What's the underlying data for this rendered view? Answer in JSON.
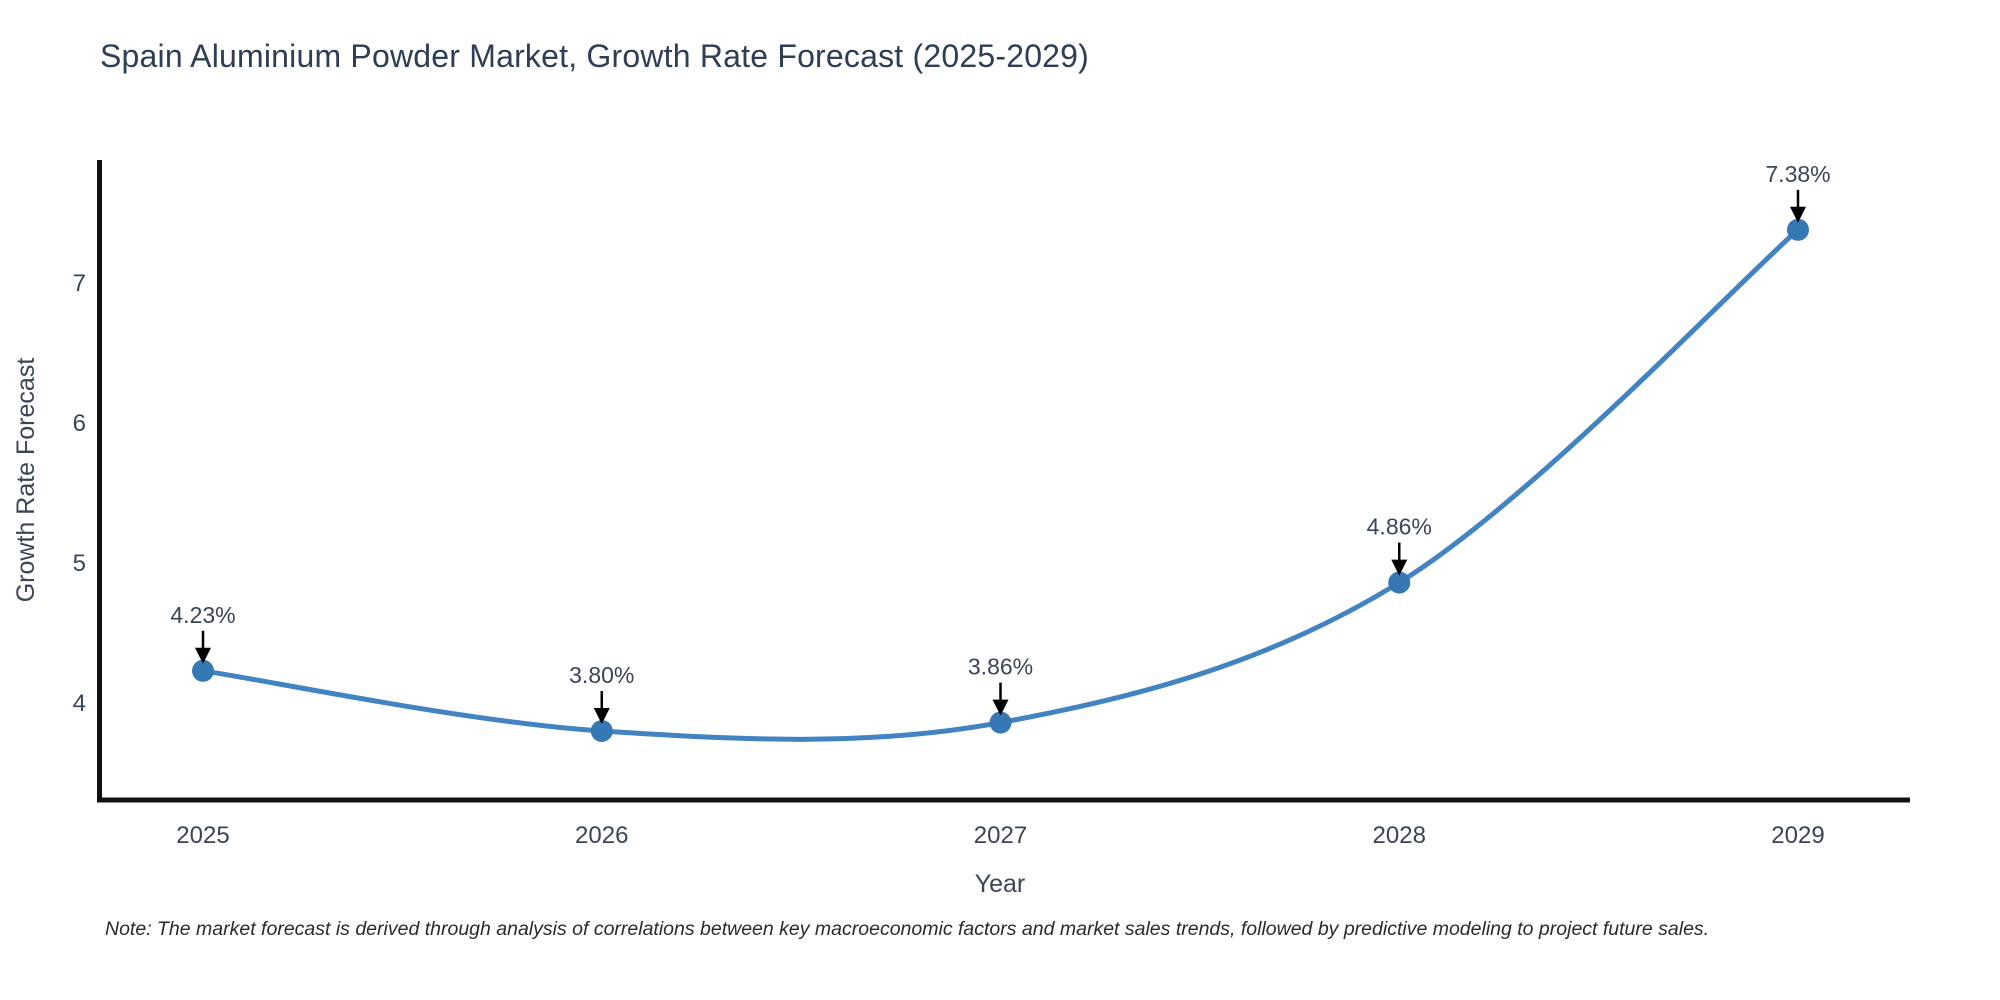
{
  "title": "Spain Aluminium Powder Market, Growth Rate Forecast (2025-2029)",
  "note": "Note: The market forecast is derived through analysis of correlations between key macroeconomic factors and market sales trends, followed by predictive modeling to project future sales.",
  "chart_data": {
    "type": "line",
    "title": "Spain Aluminium Powder Market, Growth Rate Forecast (2025-2029)",
    "xlabel": "Year",
    "ylabel": "Growth Rate Forecast",
    "categories": [
      2025,
      2026,
      2027,
      2028,
      2029
    ],
    "values": [
      4.23,
      3.8,
      3.86,
      4.86,
      7.38
    ],
    "point_labels": [
      "4.23%",
      "3.80%",
      "3.86%",
      "4.86%",
      "7.38%"
    ],
    "yticks": [
      4,
      5,
      6,
      7
    ],
    "ylim": [
      3.31,
      7.88
    ],
    "grid": false,
    "legend": false,
    "curve": "spline",
    "annotations": "value labels with downward arrows above each point",
    "colors": {
      "line": "#4283c2",
      "marker": "#3678b4",
      "axis": "#111111",
      "title_text": "#2d3e56",
      "tick_text": "#3a4556",
      "annotation_text": "#3a4556",
      "arrow": "#000000",
      "note_text": "#2b2b2b",
      "background": "#ffffff"
    }
  }
}
